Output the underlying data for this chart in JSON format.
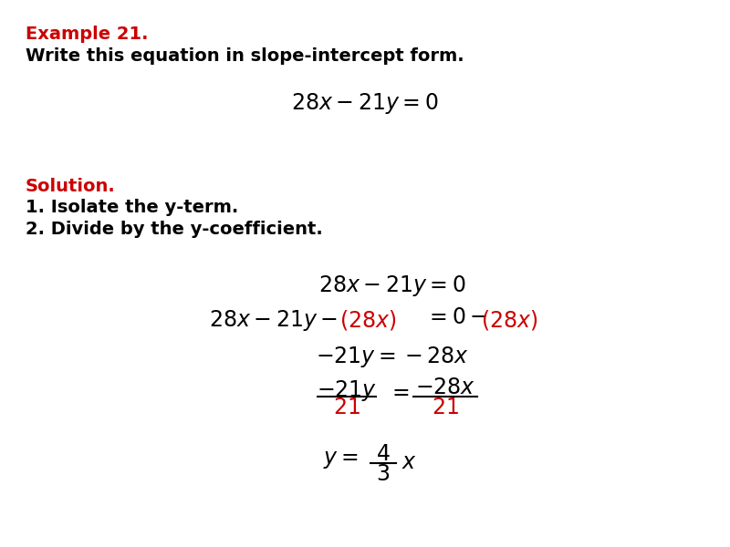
{
  "bg_color": "#ffffff",
  "title_color": "#cc0000",
  "black_color": "#000000",
  "red_color": "#cc0000",
  "example_label": "Example 21.",
  "subtitle": "Write this equation in slope-intercept form.",
  "solution_label": "Solution.",
  "step1": "1. Isolate the y-term.",
  "step2": "2. Divide by the y-coefficient.",
  "fig_width": 8.0,
  "fig_height": 6.0,
  "dpi": 100
}
